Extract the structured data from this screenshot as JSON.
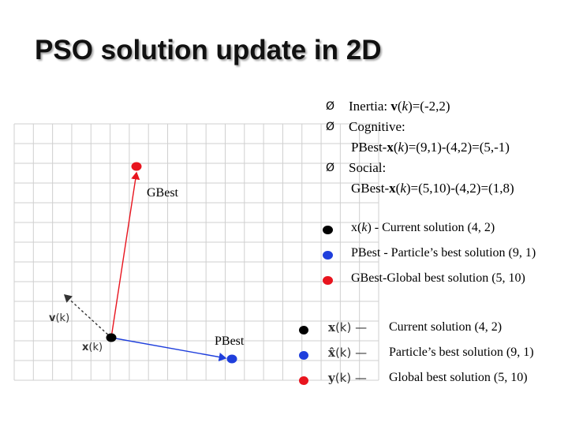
{
  "title": "PSO solution update in 2D",
  "bullets": [
    {
      "marker": "Ø",
      "pre": "Inertia: ",
      "b": "v",
      "paren1": "(",
      "it": "k",
      "post": ")=(-2,2)"
    },
    {
      "marker": "Ø",
      "pre": "Cognitive:",
      "b": "",
      "paren1": "",
      "it": "",
      "post": ""
    },
    {
      "marker": "",
      "pre": "PBest-",
      "b": "x",
      "paren1": "(",
      "it": "k",
      "post": ")=(9,1)-(4,2)=(5,-1)"
    },
    {
      "marker": "Ø",
      "pre": "Social:",
      "b": "",
      "paren1": "",
      "it": "",
      "post": ""
    },
    {
      "marker": "",
      "pre": "GBest-",
      "b": "x",
      "paren1": "(",
      "it": "k",
      "post": ")=(5,10)-(4,2)=(1,8)"
    }
  ],
  "legend_top": [
    {
      "color": "#000000",
      "b": "x",
      "it": "k",
      "text": " - Current solution (4, 2)"
    },
    {
      "color": "#1f3fdc",
      "b": "",
      "it": "",
      "text": "PBest - Particle’s best solution (9, 1)"
    },
    {
      "color": "#e8141e",
      "b": "",
      "it": "",
      "text": "GBest-Global best solution (5, 10)"
    }
  ],
  "legend_bottom": [
    {
      "color": "#000000",
      "sym": "x",
      "k": "(k)",
      "dash": "—",
      "text": "Current solution (4, 2)"
    },
    {
      "color": "#1f3fdc",
      "sym": "x̂",
      "k": "(k)",
      "dash": "—",
      "text": "Particle’s best solution (9, 1)"
    },
    {
      "color": "#e8141e",
      "sym": "y",
      "k": "(k)",
      "dash": "—",
      "text": "Global best solution (5, 10)"
    }
  ],
  "labels": {
    "gbest": "GBest",
    "pbest": "PBest",
    "vk_v": "v",
    "vk_k": "(k)",
    "xk_x": "x",
    "xk_k": "(k)"
  },
  "colors": {
    "current": "#000000",
    "pbest": "#1f3fdc",
    "gbest": "#e8141e",
    "grid": "#cfcfcf"
  },
  "diagram": {
    "current": [
      4,
      2
    ],
    "pbest": [
      9,
      1
    ],
    "gbest": [
      5,
      10
    ],
    "inertia": [
      -2,
      2
    ]
  }
}
